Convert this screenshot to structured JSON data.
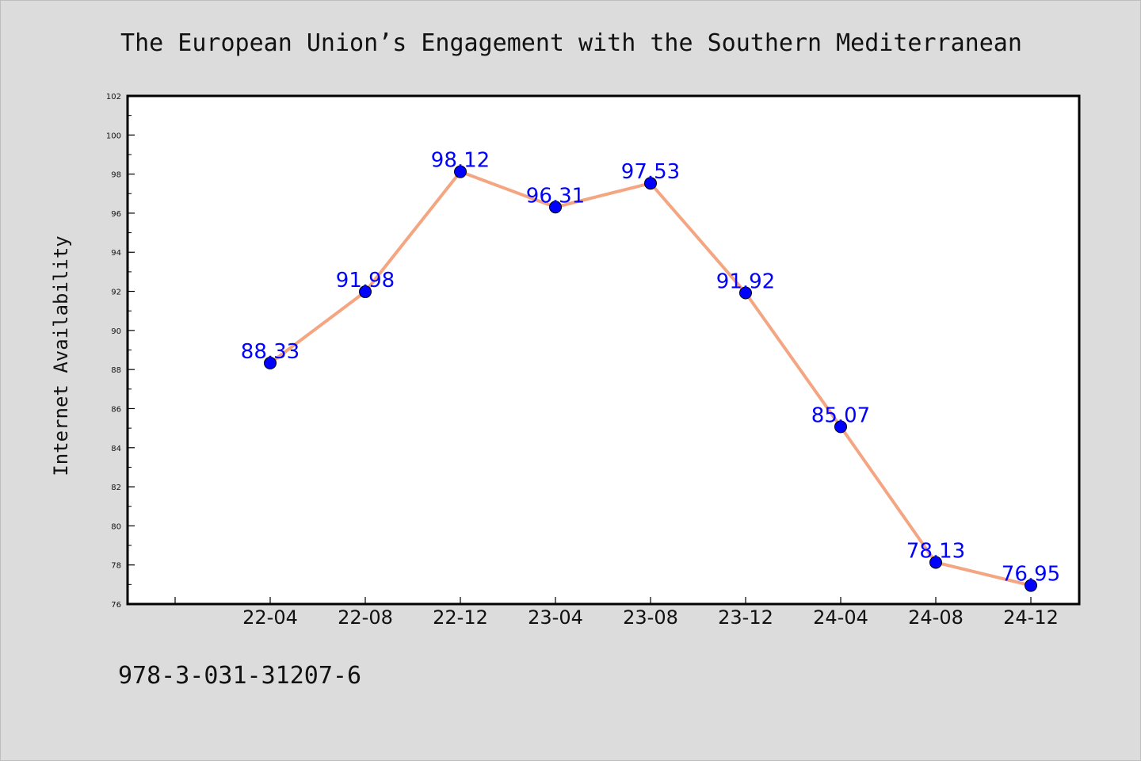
{
  "chart_data": {
    "type": "line",
    "title": "The European Union’s Engagement with the Southern Mediterranean",
    "xlabel": "",
    "ylabel": "Internet Availability",
    "categories": [
      "22-04",
      "22-08",
      "22-12",
      "23-04",
      "23-08",
      "23-12",
      "24-04",
      "24-08",
      "24-12"
    ],
    "series": [
      {
        "values": [
          88.33,
          91.98,
          98.12,
          96.31,
          97.53,
          91.92,
          85.07,
          78.13,
          76.95
        ],
        "line_color": "#f4a582",
        "marker_color": "#0000ff"
      }
    ],
    "data_labels": [
      "88.33",
      "91.98",
      "98.12",
      "96.31",
      "97.53",
      "91.92",
      "85.07",
      "78.13",
      "76.95"
    ],
    "ylim": [
      76,
      102
    ],
    "yticks": [
      76,
      78,
      80,
      82,
      84,
      86,
      88,
      90,
      92,
      94,
      96,
      98,
      100,
      102
    ],
    "grid": false,
    "legend": "none"
  },
  "footer": {
    "isbn": "978-3-031-31207-6"
  },
  "colors": {
    "background": "#dcdcdc",
    "plot_background": "#ffffff",
    "line": "#f4a582",
    "marker": "#0000ff",
    "data_label": "#0000ff"
  }
}
